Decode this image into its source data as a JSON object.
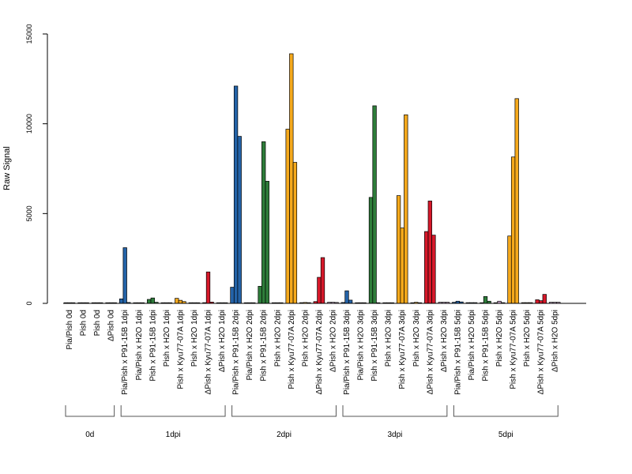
{
  "chart_data": {
    "type": "bar",
    "ylabel": "Raw Signal",
    "ylim": [
      0,
      15000
    ],
    "yticks": [
      "0",
      "5000",
      "10000",
      "15000"
    ],
    "grid": false,
    "colors": {
      "P91-15B": "#2463a8",
      "Kyu77-07A": "#f5a91c",
      "P91-15B-green": "#2e7d3a",
      "Kyu77-07A-red": "#d7182a",
      "H2O-blue": "#2463a8",
      "control": "#c8a2c8"
    },
    "categories": [
      "Pia/Pish 0d",
      "Pish 0d",
      "Pish 0d",
      "ΔPish 0d",
      "Pia/Pish x P91-15B 1dpi",
      "Pia/Pish x H2O 1dpi",
      "Pish x P91-15B 1dpi",
      "Pish x H2O 1dpi",
      "Pish x Kyu77-07A 1dpi",
      "Pish x H2O 1dpi",
      "ΔPish x Kyu77-07A 1dpi",
      "ΔPish x H2O 1dpi",
      "Pia/Pish x P91-15B 2dpi",
      "Pia/Pish x H2O 2dpi",
      "Pish x P91-15B 2dpi",
      "Pish x H2O 2dpi",
      "Pish x Kyu77-07A 2dpi",
      "Pish x H2O 2dpi",
      "ΔPish x Kyu77-07A 2dpi",
      "ΔPish x H2O 2dpi",
      "Pia/Pish x P91-15B 3dpi",
      "Pia/Pish x H2O 3dpi",
      "Pish x P91-15B 3dpi",
      "Pish x H2O 3dpi",
      "Pish x Kyu77-07A 3dpi",
      "Pish x H2O 3dpi",
      "ΔPish x Kyu77-07A 3dpi",
      "ΔPish x H2O 3dpi",
      "Pia/Pish x P91-15B 5dpi",
      "Pia/Pish x H2O 5dpi",
      "Pish x P91-15B 5dpi",
      "Pish x H2O 5dpi",
      "Pish x Kyu77-07A 5dpi",
      "Pish x H2O 5dpi",
      "ΔPish x Kyu77-07A 5dpi",
      "ΔPish x H2O 5dpi"
    ],
    "groups": [
      {
        "label": "0d",
        "first": 0,
        "last": 3
      },
      {
        "label": "1dpi",
        "first": 4,
        "last": 11
      },
      {
        "label": "2dpi",
        "first": 12,
        "last": 19
      },
      {
        "label": "3dpi",
        "first": 20,
        "last": 27
      },
      {
        "label": "5dpi",
        "first": 28,
        "last": 35
      }
    ],
    "bar_groups": [
      {
        "color": "#8b8b8b",
        "values": [
          30,
          20,
          30
        ]
      },
      {
        "color": "#8b8b8b",
        "values": [
          30,
          20,
          30
        ]
      },
      {
        "color": "#8b8b8b",
        "values": [
          30,
          20,
          30
        ]
      },
      {
        "color": "#8b8b8b",
        "values": [
          30,
          20,
          30
        ]
      },
      {
        "color": "#2463a8",
        "values": [
          250,
          3100,
          50
        ]
      },
      {
        "color": "#2463a8",
        "values": [
          30,
          30,
          30
        ]
      },
      {
        "color": "#2e7d3a",
        "values": [
          220,
          300,
          60
        ]
      },
      {
        "color": "#2e7d3a",
        "values": [
          30,
          30,
          30
        ]
      },
      {
        "color": "#f5a91c",
        "values": [
          280,
          170,
          100
        ]
      },
      {
        "color": "#f5a91c",
        "values": [
          30,
          30,
          30
        ]
      },
      {
        "color": "#d7182a",
        "values": [
          40,
          1750,
          70
        ]
      },
      {
        "color": "#d7182a",
        "values": [
          30,
          30,
          30
        ]
      },
      {
        "color": "#2463a8",
        "values": [
          900,
          12100,
          9300
        ]
      },
      {
        "color": "#2463a8",
        "values": [
          30,
          30,
          30
        ]
      },
      {
        "color": "#2e7d3a",
        "values": [
          950,
          9000,
          6800
        ]
      },
      {
        "color": "#2e7d3a",
        "values": [
          30,
          30,
          30
        ]
      },
      {
        "color": "#f5a91c",
        "values": [
          9700,
          13900,
          7850
        ]
      },
      {
        "color": "#f5a91c",
        "values": [
          40,
          50,
          40
        ]
      },
      {
        "color": "#d7182a",
        "values": [
          100,
          1450,
          2550
        ]
      },
      {
        "color": "#c8a2c8",
        "values": [
          60,
          60,
          50
        ]
      },
      {
        "color": "#2463a8",
        "values": [
          50,
          700,
          180
        ]
      },
      {
        "color": "#2463a8",
        "values": [
          30,
          30,
          30
        ]
      },
      {
        "color": "#2e7d3a",
        "values": [
          5900,
          11000,
          30
        ]
      },
      {
        "color": "#2e7d3a",
        "values": [
          30,
          30,
          30
        ]
      },
      {
        "color": "#f5a91c",
        "values": [
          6000,
          4200,
          10500
        ]
      },
      {
        "color": "#f5a91c",
        "values": [
          30,
          60,
          30
        ]
      },
      {
        "color": "#d7182a",
        "values": [
          4000,
          5700,
          3800
        ]
      },
      {
        "color": "#c8a2c8",
        "values": [
          60,
          60,
          60
        ]
      },
      {
        "color": "#2463a8",
        "values": [
          60,
          120,
          80
        ]
      },
      {
        "color": "#2463a8",
        "values": [
          40,
          40,
          40
        ]
      },
      {
        "color": "#2e7d3a",
        "values": [
          30,
          380,
          120
        ]
      },
      {
        "color": "#c8a2c8",
        "values": [
          30,
          120,
          40
        ]
      },
      {
        "color": "#f5a91c",
        "values": [
          3750,
          8150,
          11400
        ]
      },
      {
        "color": "#f5a91c",
        "values": [
          40,
          40,
          40
        ]
      },
      {
        "color": "#d7182a",
        "values": [
          200,
          150,
          500
        ]
      },
      {
        "color": "#c8a2c8",
        "values": [
          60,
          60,
          60
        ]
      }
    ]
  }
}
